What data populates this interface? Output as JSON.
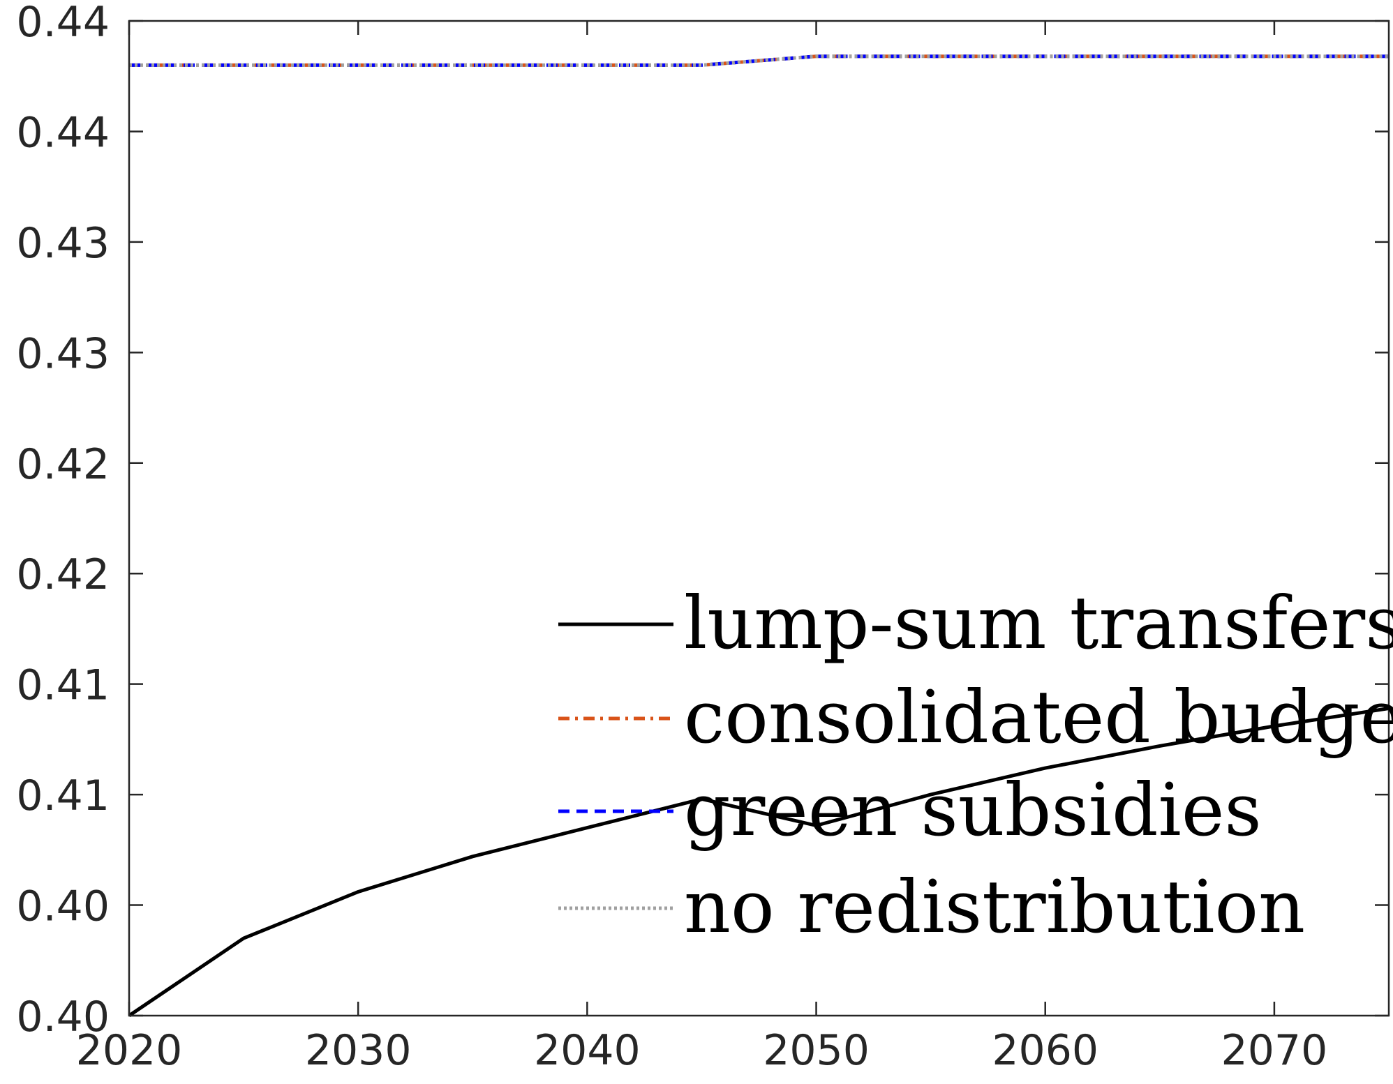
{
  "chart_data": {
    "type": "line",
    "title": "",
    "xlabel": "",
    "ylabel": "",
    "xlim": [
      2020,
      2075
    ],
    "ylim": [
      0.3975,
      0.4425
    ],
    "xticks": [
      2020,
      2030,
      2040,
      2050,
      2060,
      2070
    ],
    "xtick_labels": [
      "2020",
      "2030",
      "2040",
      "2050",
      "2060",
      "2070"
    ],
    "yticks": [
      0.3975,
      0.4025,
      0.4075,
      0.4125,
      0.4175,
      0.4225,
      0.4275,
      0.4325,
      0.4375,
      0.4425
    ],
    "ytick_labels": [
      "0.40",
      "0.40",
      "0.41",
      "0.41",
      "0.42",
      "0.42",
      "0.43",
      "0.43",
      "0.44",
      "0.44"
    ],
    "grid": false,
    "legend_position": "bottom-right",
    "x": [
      2020,
      2025,
      2030,
      2035,
      2040,
      2045,
      2050,
      2055,
      2060,
      2065,
      2070,
      2075
    ],
    "series": [
      {
        "name": "lump-sum transfers",
        "color": "#000000",
        "style": "solid",
        "values": [
          0.3975,
          0.401,
          0.4031,
          0.4047,
          0.406,
          0.4073,
          0.4061,
          0.4075,
          0.4087,
          0.4097,
          0.4106,
          0.4114
        ]
      },
      {
        "name": "consolidated budget",
        "color": "#D95319",
        "style": "dashdot",
        "values": [
          0.4405,
          0.4405,
          0.4405,
          0.4405,
          0.4405,
          0.4405,
          0.4409,
          0.4409,
          0.4409,
          0.4409,
          0.4409,
          0.4409
        ]
      },
      {
        "name": "green subsidies",
        "color": "#0000FF",
        "style": "dashed",
        "values": [
          0.4405,
          0.4405,
          0.4405,
          0.4405,
          0.4405,
          0.4405,
          0.4409,
          0.4409,
          0.4409,
          0.4409,
          0.4409,
          0.4409
        ]
      },
      {
        "name": "no redistribution",
        "color": "#A0A0A0",
        "style": "dotted",
        "values": [
          0.4405,
          0.4405,
          0.4405,
          0.4405,
          0.4405,
          0.4405,
          0.4409,
          0.4409,
          0.4409,
          0.4409,
          0.4409,
          0.4409
        ]
      }
    ]
  }
}
